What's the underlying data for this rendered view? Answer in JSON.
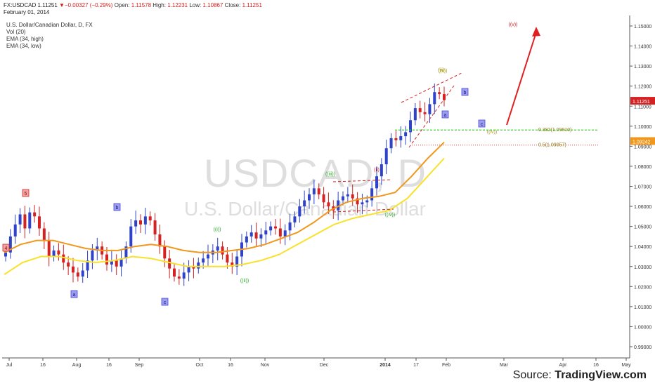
{
  "header": {
    "symbol": "FX:USDCAD",
    "last": "1.11251",
    "change": "▼−0.00327 (−0.29%)",
    "open_label": "Open:",
    "open": "1.11578",
    "high_label": "High:",
    "high": "1.12231",
    "low_label": "Low:",
    "low": "1.10867",
    "close_label": "Close:",
    "close": "1.11251",
    "date": "February 01, 2014"
  },
  "legend": {
    "title": "U.S. Dollar/Canadian Dollar, D, FX",
    "items": [
      "Vol (20)",
      "EMA (34, high)",
      "EMA (34, low)"
    ]
  },
  "watermark": {
    "ticker": "USDCAD, D",
    "name": "U.S. Dollar/Canadian Dollar"
  },
  "source": {
    "prefix": "Source: ",
    "brand": "TradingView.com"
  },
  "colors": {
    "up": "#2e43c9",
    "down": "#d42121",
    "ema_high": "#f0981e",
    "ema_low": "#f9e12b",
    "fib_382": "#3cd13c",
    "fib_50": "#e0403a",
    "wave_blue": "#4a4ad8",
    "wave_green": "#2aa82a",
    "wave_red": "#d42121",
    "wave_olive": "#a89a1a",
    "last_tag": "#d42121",
    "ema_tag": "#f0981e"
  },
  "chart_data": {
    "type": "candlestick",
    "title": "U.S. Dollar/Canadian Dollar, D, FX",
    "x_ticks": [
      "Jul",
      "16",
      "Aug",
      "16",
      "Sep",
      "Oct",
      "16",
      "Nov",
      "Dec",
      "2014",
      "17",
      "Feb",
      "Mar",
      "Apr",
      "16",
      "May"
    ],
    "y_ticks": [
      "1.15000",
      "1.14000",
      "1.13000",
      "1.12000",
      "1.11000",
      "1.10000",
      "1.09000",
      "1.08000",
      "1.07000",
      "1.06000",
      "1.05000",
      "1.04000",
      "1.03000",
      "1.02000",
      "1.01000",
      "1.00000",
      "0.99000"
    ],
    "ylim": [
      0.985,
      1.157
    ],
    "price_tags": [
      {
        "name": "last",
        "value": "1.11251"
      },
      {
        "name": "ema",
        "value": "1.09242"
      }
    ],
    "series": [
      {
        "name": "USDCAD",
        "kind": "ohlc",
        "close_path": [
          1.037,
          1.045,
          1.051,
          1.056,
          1.049,
          1.057,
          1.055,
          1.049,
          1.043,
          1.035,
          1.038,
          1.036,
          1.032,
          1.03,
          1.027,
          1.025,
          1.028,
          1.033,
          1.038,
          1.04,
          1.036,
          1.031,
          1.033,
          1.03,
          1.034,
          1.04,
          1.05,
          1.053,
          1.051,
          1.055,
          1.053,
          1.046,
          1.04,
          1.034,
          1.029,
          1.025,
          1.024,
          1.027,
          1.03,
          1.029,
          1.032,
          1.034,
          1.036,
          1.038,
          1.04,
          1.036,
          1.032,
          1.03,
          1.035,
          1.042,
          1.045,
          1.047,
          1.044,
          1.046,
          1.048,
          1.05,
          1.049,
          1.045,
          1.048,
          1.052,
          1.055,
          1.06,
          1.063,
          1.066,
          1.069,
          1.066,
          1.062,
          1.06,
          1.058,
          1.063,
          1.065,
          1.066,
          1.064,
          1.061,
          1.062,
          1.063,
          1.069,
          1.075,
          1.081,
          1.089,
          1.094,
          1.093,
          1.095,
          1.097,
          1.103,
          1.109,
          1.107,
          1.106,
          1.111,
          1.117,
          1.116,
          1.113
        ]
      },
      {
        "name": "EMA (34, high)",
        "values": [
          1.037,
          1.041,
          1.043,
          1.043,
          1.041,
          1.039,
          1.038,
          1.038,
          1.04,
          1.041,
          1.04,
          1.038,
          1.037,
          1.037,
          1.038,
          1.039,
          1.041,
          1.044,
          1.047,
          1.052,
          1.058,
          1.062,
          1.064,
          1.065,
          1.067,
          1.075,
          1.084,
          1.092
        ]
      },
      {
        "name": "EMA (34, low)",
        "values": [
          1.026,
          1.032,
          1.035,
          1.035,
          1.033,
          1.032,
          1.033,
          1.035,
          1.034,
          1.032,
          1.03,
          1.03,
          1.03,
          1.031,
          1.033,
          1.036,
          1.041,
          1.046,
          1.051,
          1.054,
          1.056,
          1.058,
          1.064,
          1.074,
          1.084
        ]
      }
    ],
    "fib_levels": [
      {
        "label": "0.382(1.09810)",
        "value": 1.0981
      },
      {
        "label": "0.5(1.09057)",
        "value": 1.09057
      }
    ],
    "wave_labels": [
      {
        "text": "4",
        "style": "box-red"
      },
      {
        "text": "5",
        "style": "box-red"
      },
      {
        "text": "a",
        "style": "box-blue"
      },
      {
        "text": "b",
        "style": "box-blue"
      },
      {
        "text": "c",
        "style": "box-blue"
      },
      {
        "text": "((i))",
        "style": "green"
      },
      {
        "text": "((ii))",
        "style": "green"
      },
      {
        "text": "((iii))",
        "style": "green"
      },
      {
        "text": "((iv))",
        "style": "green"
      },
      {
        "text": "(ii)",
        "style": "red"
      },
      {
        "text": "(iii)",
        "style": "olive"
      },
      {
        "text": "((v))",
        "style": "olive"
      },
      {
        "text": "a",
        "style": "box-blue"
      },
      {
        "text": "b",
        "style": "box-blue"
      },
      {
        "text": "c",
        "style": "box-blue"
      },
      {
        "text": "((iv))",
        "style": "olive"
      },
      {
        "text": "((v))",
        "style": "red"
      }
    ]
  }
}
